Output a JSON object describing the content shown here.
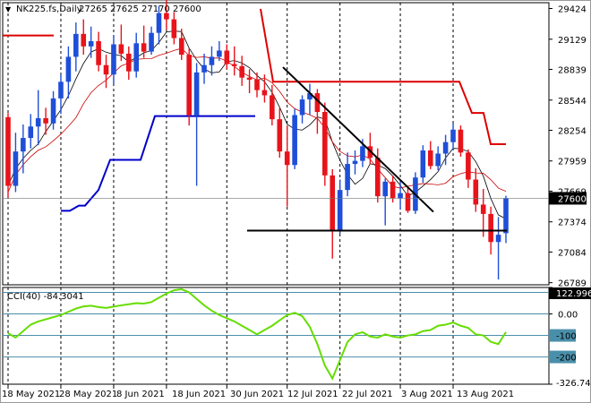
{
  "header": {
    "symbol": "NK225.fs,Daily",
    "ohlc": "27265 27625 27170 27600"
  },
  "cci_label": "CCI(40) -84.3041",
  "colors": {
    "up": "#1f4fd8",
    "down": "#e8131b",
    "ma_fast": "#000000",
    "ma_slow": "#cc0000",
    "stop_red": "#dd0000",
    "stop_blue": "#0000cc",
    "cci": "#66dd00",
    "level": "#4a8faa",
    "trend": "#000000"
  },
  "chart_data": [
    {
      "type": "candlestick",
      "title": "NK225.fs,Daily",
      "x_tick_labels": [
        "18 May 2021",
        "28 May 2021",
        "8 Jun 2021",
        "18 Jun 2021",
        "30 Jun 2021",
        "12 Jul 2021",
        "22 Jul 2021",
        "3 Aug 2021",
        "13 Aug 2021"
      ],
      "y_tick_labels": [
        "29424",
        "29129",
        "28839",
        "28544",
        "28254",
        "27959",
        "27669",
        "27374",
        "27084",
        "26789"
      ],
      "ylim": [
        26769,
        29480
      ],
      "last_price": "27600",
      "ohlc": [
        [
          28380,
          28420,
          27610,
          27720
        ],
        [
          27720,
          28230,
          27660,
          28050
        ],
        [
          28050,
          28310,
          27840,
          28180
        ],
        [
          28180,
          28410,
          28080,
          28290
        ],
        [
          28290,
          28640,
          28110,
          28370
        ],
        [
          28370,
          28470,
          28210,
          28320
        ],
        [
          28320,
          28630,
          28260,
          28560
        ],
        [
          28560,
          28790,
          28410,
          28720
        ],
        [
          28720,
          29060,
          28560,
          28960
        ],
        [
          28960,
          29290,
          28820,
          29180
        ],
        [
          29180,
          29320,
          28980,
          29060
        ],
        [
          29060,
          29250,
          28950,
          29110
        ],
        [
          29110,
          29200,
          28820,
          28880
        ],
        [
          28880,
          28980,
          28660,
          28790
        ],
        [
          28790,
          29170,
          28700,
          29080
        ],
        [
          29080,
          29270,
          28920,
          28990
        ],
        [
          28990,
          29060,
          28740,
          28820
        ],
        [
          28820,
          29190,
          28760,
          29090
        ],
        [
          29090,
          29260,
          28950,
          29010
        ],
        [
          29010,
          29250,
          28980,
          29190
        ],
        [
          29190,
          29450,
          29080,
          29380
        ],
        [
          29380,
          29530,
          29220,
          29320
        ],
        [
          29320,
          29390,
          29080,
          29140
        ],
        [
          29140,
          29230,
          28930,
          28980
        ],
        [
          28980,
          29040,
          28300,
          28400
        ],
        [
          28400,
          28900,
          27720,
          28810
        ],
        [
          28810,
          28990,
          28700,
          28880
        ],
        [
          28880,
          29060,
          28780,
          28960
        ],
        [
          28960,
          29110,
          28920,
          29020
        ],
        [
          29020,
          29080,
          28840,
          28890
        ],
        [
          28890,
          29060,
          28780,
          28870
        ],
        [
          28870,
          28970,
          28680,
          28760
        ],
        [
          28760,
          28840,
          28610,
          28740
        ],
        [
          28740,
          28810,
          28570,
          28640
        ],
        [
          28640,
          28790,
          28520,
          28590
        ],
        [
          28590,
          28690,
          28300,
          28360
        ],
        [
          28360,
          28470,
          27990,
          28050
        ],
        [
          28050,
          28300,
          27520,
          27920
        ],
        [
          27920,
          28460,
          27880,
          28400
        ],
        [
          28400,
          28590,
          28320,
          28550
        ],
        [
          28550,
          28700,
          28400,
          28610
        ],
        [
          28610,
          28650,
          28220,
          28430
        ],
        [
          28430,
          28520,
          27720,
          27820
        ],
        [
          27820,
          27880,
          27020,
          27290
        ],
        [
          27290,
          27780,
          27260,
          27680
        ],
        [
          27680,
          28040,
          27620,
          27930
        ],
        [
          27930,
          28060,
          27830,
          27960
        ],
        [
          27960,
          28170,
          27900,
          28100
        ],
        [
          28100,
          28230,
          27930,
          27990
        ],
        [
          27990,
          28080,
          27560,
          27620
        ],
        [
          27620,
          27790,
          27340,
          27760
        ],
        [
          27760,
          27820,
          27560,
          27600
        ],
        [
          27600,
          27770,
          27490,
          27650
        ],
        [
          27650,
          27700,
          27460,
          27480
        ],
        [
          27480,
          27850,
          27450,
          27800
        ],
        [
          27800,
          28110,
          27750,
          28060
        ],
        [
          28060,
          28150,
          27880,
          27910
        ],
        [
          27910,
          28100,
          27870,
          28030
        ],
        [
          28030,
          28210,
          27920,
          28140
        ],
        [
          28140,
          28320,
          28060,
          28260
        ],
        [
          28260,
          28300,
          28000,
          28040
        ],
        [
          28040,
          28070,
          27700,
          27780
        ],
        [
          27780,
          27890,
          27470,
          27540
        ],
        [
          27540,
          27690,
          27230,
          27450
        ],
        [
          27450,
          27520,
          27060,
          27180
        ],
        [
          27180,
          27420,
          26820,
          27250
        ],
        [
          27265,
          27625,
          27170,
          27600
        ]
      ]
    },
    {
      "type": "line",
      "title": "CCI(40) -84.3041",
      "y_tick_labels": [
        "122.9967",
        "0.00",
        "-100",
        "-200",
        "-326.744"
      ],
      "levels": [
        100,
        0,
        -100,
        -200
      ],
      "ylim": [
        -326.744,
        122.9967
      ],
      "values": [
        -90,
        -110,
        -80,
        -50,
        -35,
        -25,
        -15,
        -5,
        10,
        25,
        35,
        38,
        32,
        28,
        34,
        40,
        45,
        50,
        48,
        55,
        75,
        95,
        110,
        115,
        100,
        70,
        40,
        15,
        -5,
        -20,
        -35,
        -55,
        -75,
        -95,
        -75,
        -55,
        -30,
        -5,
        5,
        -10,
        -60,
        -140,
        -240,
        -300,
        -215,
        -130,
        -95,
        -85,
        -105,
        -110,
        -95,
        -105,
        -110,
        -100,
        -95,
        -80,
        -75,
        -55,
        -50,
        -40,
        -55,
        -65,
        -95,
        -100,
        -130,
        -140,
        -84.3041
      ]
    }
  ]
}
